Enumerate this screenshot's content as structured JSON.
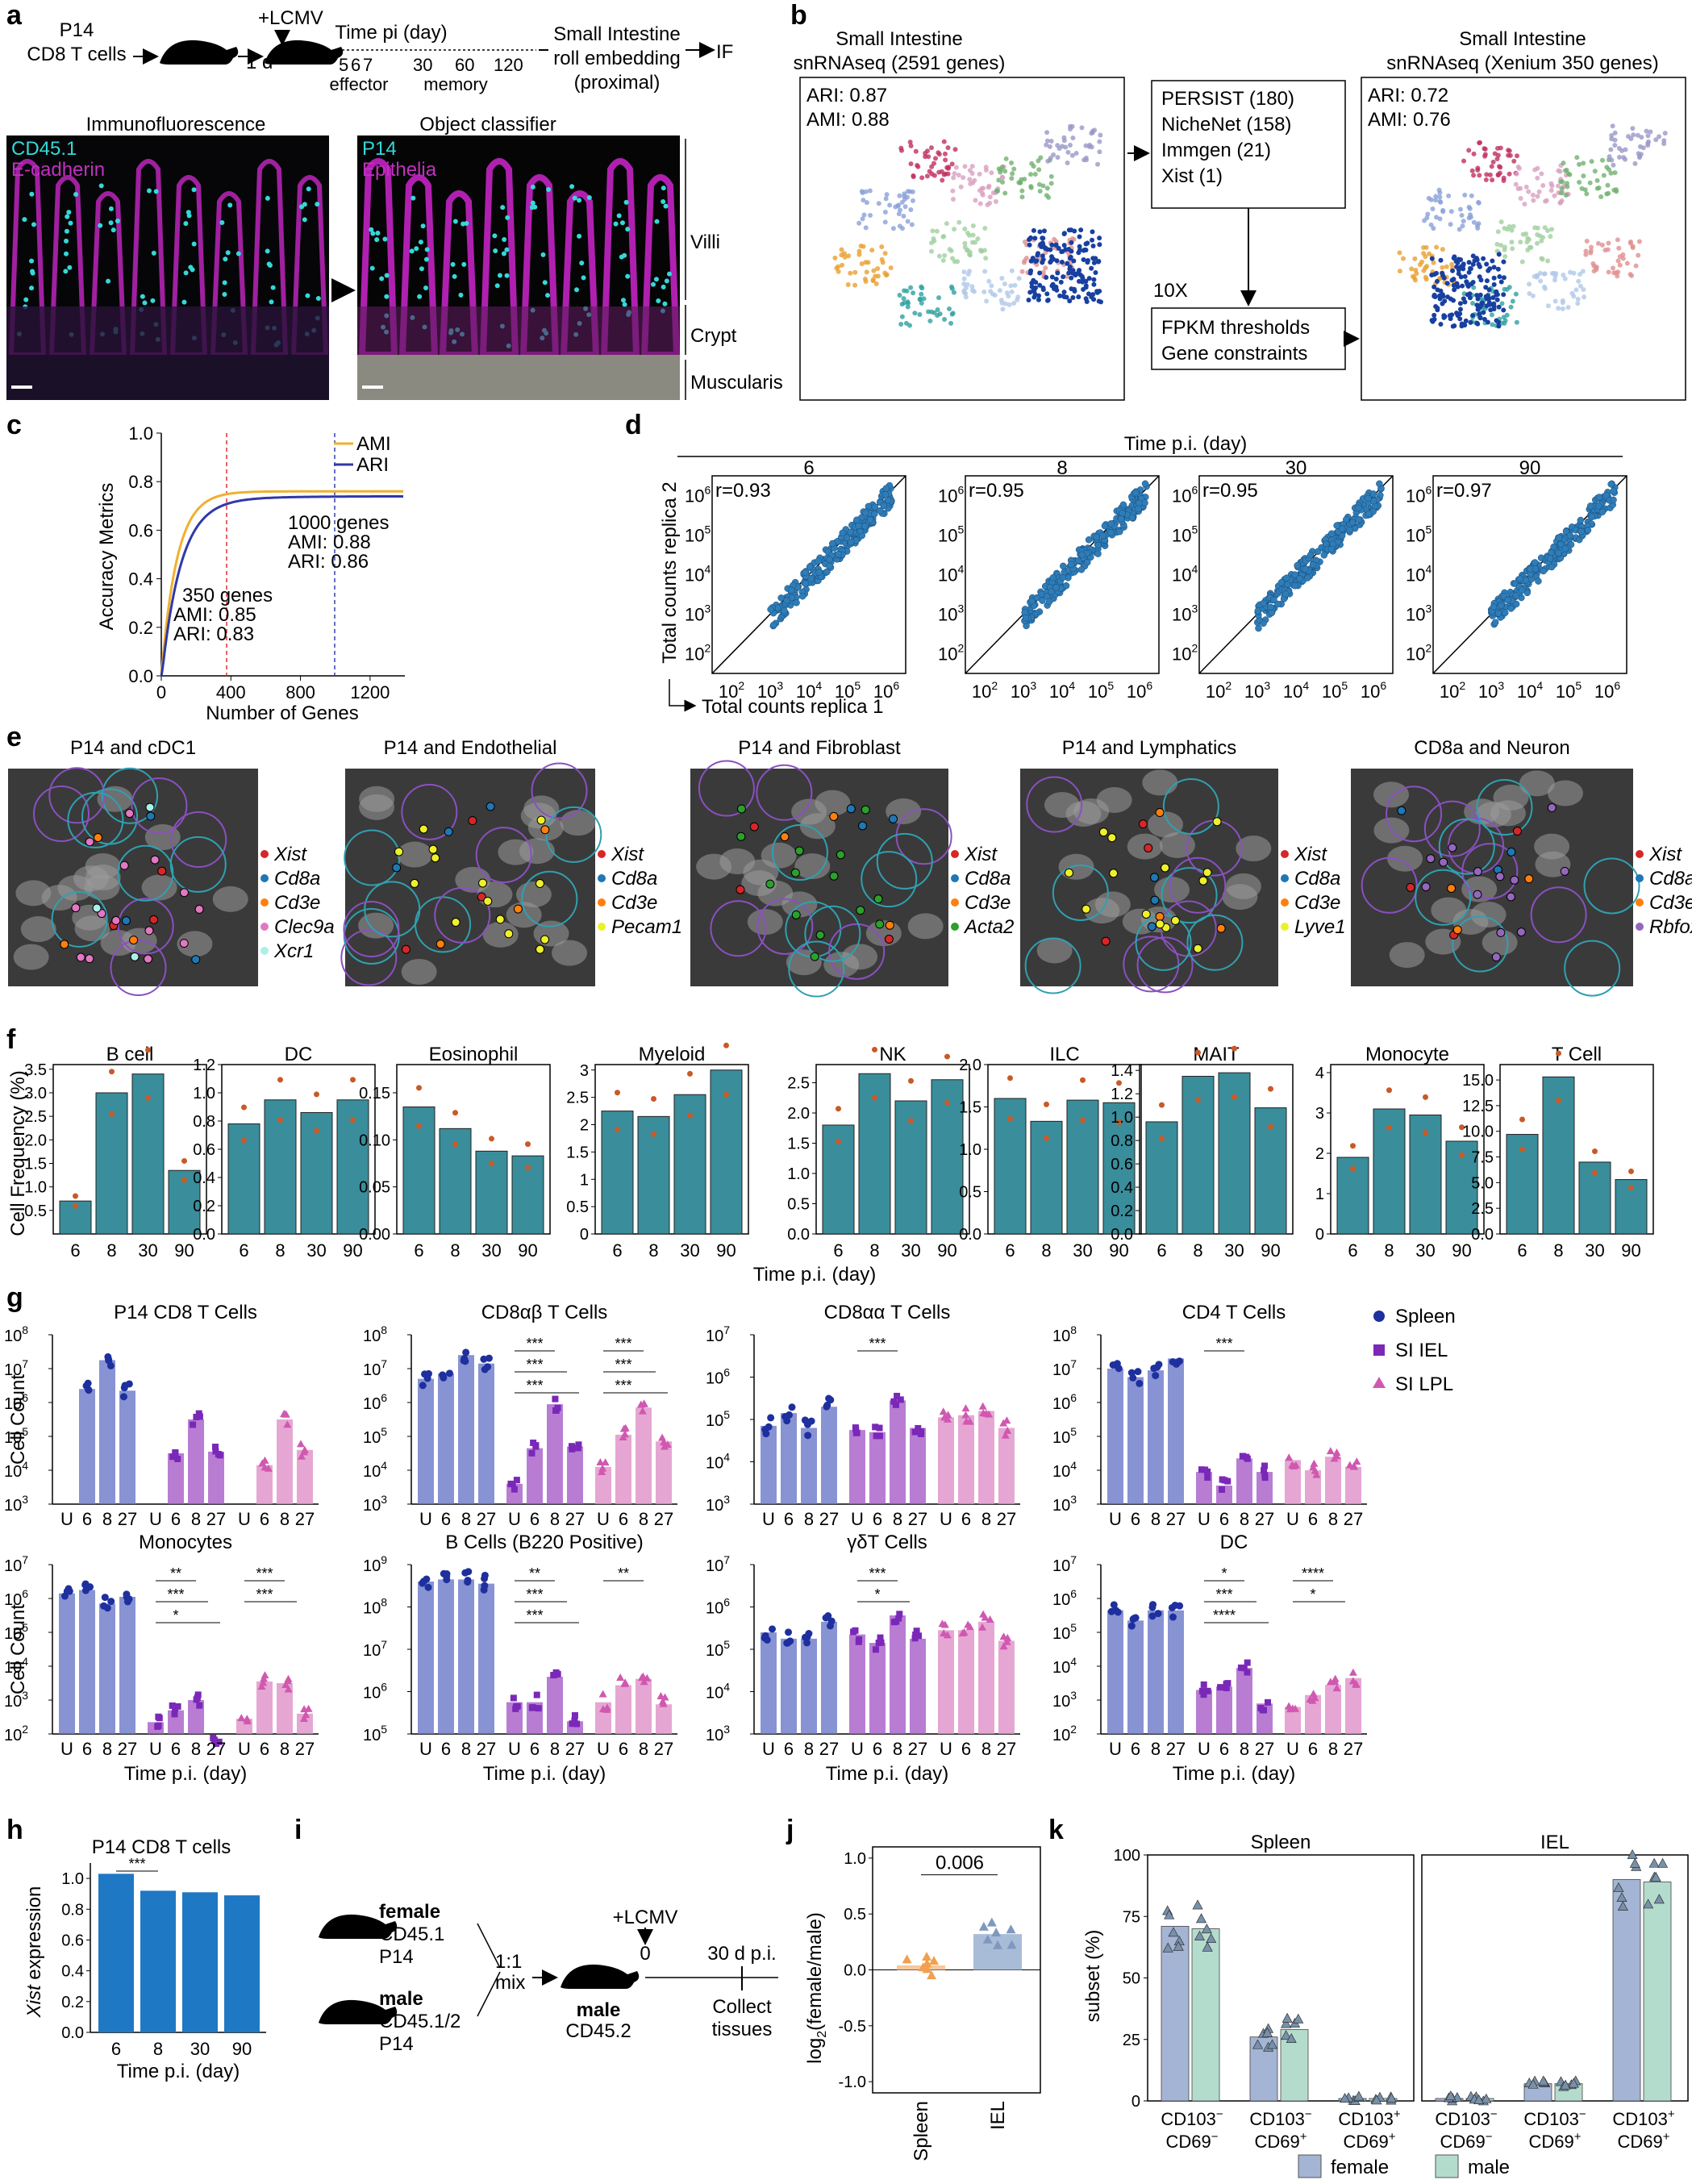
{
  "panel_letters": [
    "a",
    "b",
    "c",
    "d",
    "e",
    "f",
    "g",
    "h",
    "i",
    "j",
    "k"
  ],
  "panel_a": {
    "schema": {
      "cells": [
        "P14",
        "CD8 T cells"
      ],
      "one_day": "1 d",
      "infection": "+LCMV",
      "time_label": "Time pi (day)",
      "ticks": [
        "5",
        "6",
        "7",
        "30",
        "60",
        "120"
      ],
      "effector": "effector",
      "memory": "memory",
      "right": [
        "Small Intestine",
        "roll embedding",
        "(proximal)"
      ],
      "arrow_to": "IF"
    },
    "if_title": "Immunofluorescence",
    "if_ch1": "CD45.1",
    "if_ch2": "E-cadherin",
    "oc_title": "Object classifier",
    "oc_ch1": "P14",
    "oc_ch2": "Epithelia",
    "regions": [
      "Villi",
      "Crypt",
      "Muscularis"
    ],
    "colors": {
      "cyan": "#35d8d8",
      "magenta": "#c030c0"
    }
  },
  "panel_b": {
    "left_title": [
      "Small Intestine",
      "snRNAseq (2591 genes)"
    ],
    "left_ari": "ARI: 0.87",
    "left_ami": "AMI: 0.88",
    "gene_box": [
      "PERSIST (180)",
      "NicheNet (158)",
      "Immgen (21)",
      "Xist (1)"
    ],
    "tenx": "10X",
    "fpkm_box": [
      "FPKM thresholds",
      "Gene constraints"
    ],
    "right_title": [
      "Small Intestine",
      "snRNAseq (Xenium 350 genes)"
    ],
    "right_ari": "ARI: 0.72",
    "right_ami": "AMI: 0.76"
  },
  "panel_c": {
    "ylabel": "Accuracy Metrics",
    "xlabel": "Number of Genes",
    "legend": [
      "AMI",
      "ARI"
    ],
    "xticks": [
      "0",
      "400",
      "800",
      "1200"
    ],
    "yticks": [
      "0.0",
      "0.2",
      "0.4",
      "0.6",
      "0.8",
      "1.0"
    ],
    "ann_1000": [
      "1000 genes",
      "AMI: 0.88",
      "ARI: 0.86"
    ],
    "ann_350": [
      "350 genes",
      "AMI: 0.85",
      "ARI: 0.83"
    ],
    "colors": {
      "ami": "#f0b030",
      "ari": "#3038a8"
    }
  },
  "panel_d": {
    "title": "Time p.i. (day)",
    "ylabel": "Total counts replica 2",
    "xlabel": "Total counts replica 1",
    "days": [
      "6",
      "8",
      "30",
      "90"
    ],
    "r": [
      "r=0.93",
      "r=0.95",
      "r=0.95",
      "r=0.97"
    ],
    "tick_exp": [
      "2",
      "3",
      "4",
      "5",
      "6"
    ],
    "tick_base": "10",
    "point_color": "#2f7db8"
  },
  "panel_e": [
    {
      "title": "P14 and cDC1",
      "legend": [
        {
          "label": "Xist",
          "color": "#d62728"
        },
        {
          "label": "Cd8a",
          "color": "#1f77b4"
        },
        {
          "label": "Cd3e",
          "color": "#ff7f0e"
        },
        {
          "label": "Clec9a",
          "color": "#e377c2"
        },
        {
          "label": "Xcr1",
          "color": "#aaf0e8"
        }
      ]
    },
    {
      "title": "P14 and Endothelial",
      "legend": [
        {
          "label": "Xist",
          "color": "#d62728"
        },
        {
          "label": "Cd8a",
          "color": "#1f77b4"
        },
        {
          "label": "Cd3e",
          "color": "#ff7f0e"
        },
        {
          "label": "Pecam1",
          "color": "#eef02a"
        }
      ]
    },
    {
      "title": "P14 and Fibroblast",
      "legend": [
        {
          "label": "Xist",
          "color": "#d62728"
        },
        {
          "label": "Cd8a",
          "color": "#1f77b4"
        },
        {
          "label": "Cd3e",
          "color": "#ff7f0e"
        },
        {
          "label": "Acta2",
          "color": "#2ca02c"
        }
      ]
    },
    {
      "title": "P14 and Lymphatics",
      "legend": [
        {
          "label": "Xist",
          "color": "#d62728"
        },
        {
          "label": "Cd8a",
          "color": "#1f77b4"
        },
        {
          "label": "Cd3e",
          "color": "#ff7f0e"
        },
        {
          "label": "Lyve1",
          "color": "#eef02a"
        }
      ]
    },
    {
      "title": "CD8a and Neuron",
      "legend": [
        {
          "label": "Xist",
          "color": "#d62728"
        },
        {
          "label": "Cd8a",
          "color": "#1f77b4"
        },
        {
          "label": "Cd3e",
          "color": "#ff7f0e"
        },
        {
          "label": "Rbfox3",
          "color": "#9467bd"
        }
      ]
    }
  ],
  "chart_data": [
    {
      "panel": "f",
      "type": "bar",
      "ylabel": "Cell Frequency (%)",
      "xlabel": "Time p.i. (day)",
      "categories": [
        "6",
        "8",
        "30",
        "90"
      ],
      "bar_color": "#3a8d9b",
      "point_color": "#c85a28",
      "subplots": [
        {
          "title": "B cell",
          "values": [
            0.7,
            3.0,
            3.4,
            1.35
          ],
          "ylim": [
            0,
            3.6
          ],
          "yticks": [
            "0.5",
            "1.0",
            "1.5",
            "2.0",
            "2.5",
            "3.0",
            "3.5"
          ]
        },
        {
          "title": "DC",
          "values": [
            0.78,
            0.95,
            0.86,
            0.95
          ],
          "ylim": [
            0,
            1.2
          ],
          "yticks": [
            "0.0",
            "0.2",
            "0.4",
            "0.6",
            "0.8",
            "1.0",
            "1.2"
          ]
        },
        {
          "title": "Eosinophil",
          "values": [
            0.135,
            0.112,
            0.088,
            0.083
          ],
          "ylim": [
            0,
            0.18
          ],
          "yticks": [
            "0.00",
            "0.05",
            "0.10",
            "0.15"
          ]
        },
        {
          "title": "Myeloid",
          "values": [
            2.25,
            2.15,
            2.55,
            3.0
          ],
          "ylim": [
            0,
            3.1
          ],
          "yticks": [
            "0",
            "0.5",
            "1",
            "1.5",
            "2",
            "2.5",
            "3"
          ]
        },
        {
          "title": "NK",
          "values": [
            1.8,
            2.65,
            2.2,
            2.55
          ],
          "ylim": [
            0,
            2.8
          ],
          "yticks": [
            "0.0",
            "0.5",
            "1.0",
            "1.5",
            "2.0",
            "2.5"
          ]
        },
        {
          "title": "ILC",
          "values": [
            1.6,
            1.33,
            1.58,
            1.55
          ],
          "ylim": [
            0,
            2.0
          ],
          "yticks": [
            "0.0",
            "0.5",
            "1.0",
            "1.5",
            "2.0"
          ]
        },
        {
          "title": "MAIT",
          "values": [
            0.96,
            1.35,
            1.38,
            1.08
          ],
          "ylim": [
            0,
            1.45
          ],
          "yticks": [
            "0.0",
            "0.2",
            "0.4",
            "0.6",
            "0.8",
            "1.0",
            "1.2",
            "1.4"
          ]
        },
        {
          "title": "Monocyte",
          "values": [
            1.9,
            3.1,
            2.95,
            2.3
          ],
          "ylim": [
            0,
            4.2
          ],
          "yticks": [
            "0",
            "1",
            "2",
            "3",
            "4"
          ]
        },
        {
          "title": "T Cell",
          "values": [
            9.7,
            15.3,
            7.0,
            5.3
          ],
          "ylim": [
            0,
            16.5
          ],
          "yticks": [
            "0.0",
            "2.5",
            "5.0",
            "7.5",
            "10.0",
            "12.5",
            "15.0"
          ]
        }
      ]
    },
    {
      "panel": "g",
      "type": "bar",
      "ylabel": "Cell Count",
      "xlabel": "Time p.i. (day)",
      "categories": [
        "U",
        "6",
        "8",
        "27"
      ],
      "groups": [
        "Spleen",
        "SI IEL",
        "SI LPL"
      ],
      "group_colors": [
        "#6a78c8",
        "#a65cc8",
        "#e090c8"
      ],
      "marker_colors": [
        "#1e2f9e",
        "#7a28b8",
        "#d058b0"
      ],
      "subplots": [
        {
          "title": "P14 CD8 T Cells",
          "ymin_exp": 3,
          "ymax_exp": 8,
          "values": [
            [
              null,
              6.4,
              7.25,
              6.35
            ],
            [
              null,
              4.5,
              5.5,
              4.55
            ],
            [
              null,
              4.15,
              5.5,
              4.6
            ]
          ],
          "sig": []
        },
        {
          "title": "CD8αβ T Cells",
          "ymin_exp": 3,
          "ymax_exp": 8,
          "values": [
            [
              6.7,
              6.85,
              7.4,
              7.15
            ],
            [
              3.6,
              4.65,
              5.95,
              4.7
            ],
            [
              4.1,
              5.05,
              5.85,
              4.85
            ]
          ],
          "sig": [
            "***",
            "***",
            "***",
            "***",
            "***",
            "***"
          ]
        },
        {
          "title": "CD8αα T Cells",
          "ymin_exp": 3,
          "ymax_exp": 7,
          "values": [
            [
              4.85,
              5.15,
              4.8,
              5.3
            ],
            [
              4.75,
              4.7,
              5.45,
              4.8
            ],
            [
              5.05,
              5.1,
              5.2,
              4.8
            ]
          ],
          "sig": [
            "***"
          ]
        },
        {
          "title": "CD4 T Cells",
          "ymin_exp": 3,
          "ymax_exp": 8,
          "values": [
            [
              7.0,
              6.75,
              6.95,
              7.3
            ],
            [
              3.95,
              3.55,
              4.35,
              3.95
            ],
            [
              4.3,
              4.0,
              4.4,
              4.1
            ]
          ],
          "sig": [
            "***"
          ]
        },
        {
          "title": "Monocytes",
          "ymin_exp": 2,
          "ymax_exp": 7,
          "values": [
            [
              6.15,
              6.25,
              5.85,
              6.05
            ],
            [
              2.35,
              2.7,
              3.0,
              1.85
            ],
            [
              2.45,
              3.55,
              3.5,
              2.6
            ]
          ],
          "sig": [
            "**",
            "***",
            "*",
            "***",
            "***"
          ]
        },
        {
          "title": "B Cells (B220 Positive)",
          "ymin_exp": 5,
          "ymax_exp": 9,
          "broken_axis": true,
          "values": [
            [
              8.6,
              8.65,
              8.65,
              8.55
            ],
            [
              5.75,
              5.75,
              6.35,
              5.3
            ],
            [
              5.75,
              6.15,
              6.3,
              5.7
            ]
          ],
          "sig": [
            "**",
            "***",
            "***",
            "**"
          ]
        },
        {
          "title": "γδT Cells",
          "ymin_exp": 3,
          "ymax_exp": 7,
          "values": [
            [
              5.4,
              5.25,
              5.25,
              5.65
            ],
            [
              5.35,
              5.15,
              5.8,
              5.25
            ],
            [
              5.45,
              5.45,
              5.65,
              5.2
            ]
          ],
          "sig": [
            "***",
            "*"
          ]
        },
        {
          "title": "DC",
          "ymin_exp": 2,
          "ymax_exp": 7,
          "values": [
            [
              5.65,
              5.35,
              5.65,
              5.65
            ],
            [
              3.3,
              3.4,
              3.95,
              2.9
            ],
            [
              2.8,
              3.15,
              3.45,
              3.65
            ]
          ],
          "sig": [
            "*",
            "***",
            "****",
            "****",
            "*"
          ]
        }
      ],
      "legend": [
        "Spleen",
        "SI IEL",
        "SI LPL"
      ]
    },
    {
      "panel": "h",
      "type": "bar",
      "title": "P14 CD8 T cells",
      "ylabel": "Xist expression",
      "xlabel": "Time p.i. (day)",
      "categories": [
        "6",
        "8",
        "30",
        "90"
      ],
      "values": [
        1.03,
        0.92,
        0.91,
        0.89
      ],
      "ylim": [
        0,
        1.1
      ],
      "yticks": [
        "0.0",
        "0.2",
        "0.4",
        "0.6",
        "0.8",
        "1.0"
      ],
      "sig": [
        "***"
      ],
      "bar_color": "#1f78c4"
    },
    {
      "panel": "j",
      "type": "bar",
      "ylabel": "log2(female/male)",
      "categories": [
        "Spleen",
        "IEL"
      ],
      "values": [
        0.04,
        0.32
      ],
      "ylim": [
        -1.1,
        1.1
      ],
      "yticks": [
        "-1.0",
        "-0.5",
        "0.0",
        "0.5",
        "1.0"
      ],
      "pvalue": "0.006",
      "bar_colors": [
        "#f6c89c",
        "#a8bcd8"
      ],
      "point_colors": [
        "#f0a050",
        "#8098c0"
      ]
    },
    {
      "panel": "k",
      "type": "bar",
      "ylabel": "subset (%)",
      "facets": [
        "Spleen",
        "IEL"
      ],
      "categories": [
        [
          "CD103",
          "−",
          "CD69",
          "−"
        ],
        [
          "CD103",
          "−",
          "CD69",
          "+"
        ],
        [
          "CD103",
          "+",
          "CD69",
          "+"
        ]
      ],
      "series": [
        {
          "name": "female",
          "spleen": [
            71,
            26,
            1
          ],
          "iel": [
            1,
            7,
            90
          ]
        },
        {
          "name": "male",
          "spleen": [
            70,
            29,
            1
          ],
          "iel": [
            1,
            7,
            89
          ]
        }
      ],
      "ylim": [
        0,
        100
      ],
      "yticks": [
        "0",
        "25",
        "50",
        "75",
        "100"
      ],
      "colors": {
        "female": "#a4b4d4",
        "male": "#b4dccc"
      }
    }
  ],
  "panel_i": {
    "female": [
      "female",
      "CD45.1",
      "P14"
    ],
    "male": [
      "male",
      "CD45.1/2",
      "P14"
    ],
    "ratio": [
      "1:1",
      "mix"
    ],
    "recipient": [
      "male",
      "CD45.2"
    ],
    "infection": "+LCMV",
    "zero": "0",
    "timepoint": "30 d p.i.",
    "collect": [
      "Collect",
      "tissues"
    ]
  },
  "panel_j": {
    "ylabel_main": "log",
    "ylabel_sub": "2",
    "ylabel_tail": "(female/male)"
  }
}
